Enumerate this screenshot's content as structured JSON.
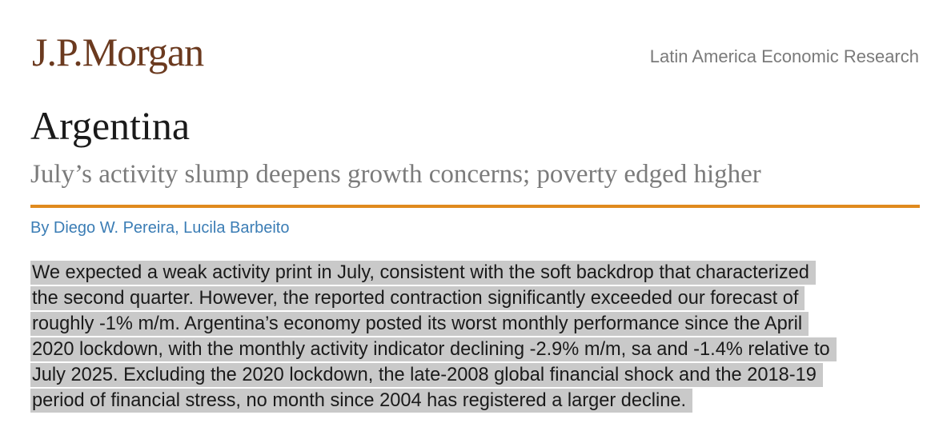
{
  "header": {
    "logo": "J.P.Morgan",
    "series": "Latin America Economic Research"
  },
  "title": "Argentina",
  "subtitle": "July’s activity slump deepens growth concerns; poverty edged higher",
  "authors": "By Diego W. Pereira, Lucila Barbeito",
  "paragraph": {
    "lines": [
      "We expected a weak activity print in July, consistent with the soft backdrop that characterized",
      "the second quarter. However, the reported contraction significantly exceeded our forecast of",
      "roughly -1% m/m. Argentina’s economy posted its worst monthly performance since the April",
      "2020 lockdown, with the monthly activity indicator declining -2.9% m/m, sa and -1.4% relative to",
      "July 2025. Excluding the 2020 lockdown, the late-2008 global financial shock and the 2018-19",
      "period of financial stress, no month since 2004 has registered a larger decline."
    ]
  }
}
